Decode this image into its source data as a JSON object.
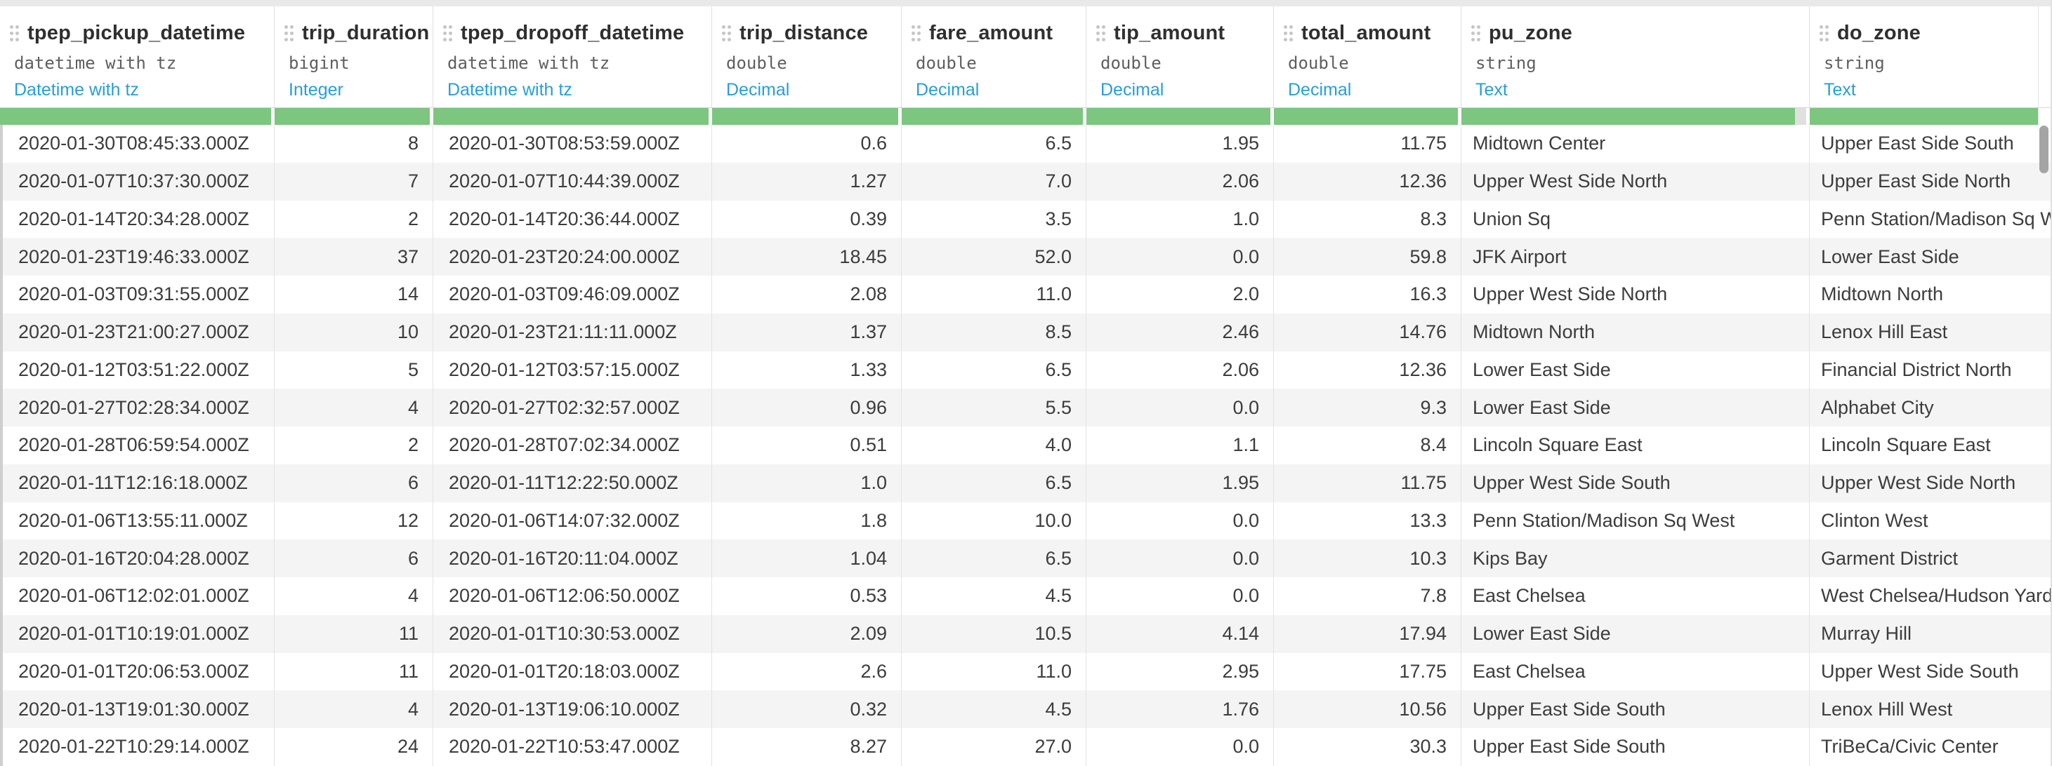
{
  "table": {
    "columns": [
      {
        "name": "tpep_pickup_datetime",
        "type": "datetime with tz",
        "logical_type": "Datetime with tz"
      },
      {
        "name": "trip_duration",
        "type": "bigint",
        "logical_type": "Integer"
      },
      {
        "name": "tpep_dropoff_datetime",
        "type": "datetime with tz",
        "logical_type": "Datetime with tz"
      },
      {
        "name": "trip_distance",
        "type": "double",
        "logical_type": "Decimal"
      },
      {
        "name": "fare_amount",
        "type": "double",
        "logical_type": "Decimal"
      },
      {
        "name": "tip_amount",
        "type": "double",
        "logical_type": "Decimal"
      },
      {
        "name": "total_amount",
        "type": "double",
        "logical_type": "Decimal"
      },
      {
        "name": "pu_zone",
        "type": "string",
        "logical_type": "Text"
      },
      {
        "name": "do_zone",
        "type": "string",
        "logical_type": "Text"
      }
    ],
    "rows": [
      [
        "2020-01-30T08:45:33.000Z",
        "8",
        "2020-01-30T08:53:59.000Z",
        "0.6",
        "6.5",
        "1.95",
        "11.75",
        "Midtown Center",
        "Upper East Side South"
      ],
      [
        "2020-01-07T10:37:30.000Z",
        "7",
        "2020-01-07T10:44:39.000Z",
        "1.27",
        "7.0",
        "2.06",
        "12.36",
        "Upper West Side North",
        "Upper East Side North"
      ],
      [
        "2020-01-14T20:34:28.000Z",
        "2",
        "2020-01-14T20:36:44.000Z",
        "0.39",
        "3.5",
        "1.0",
        "8.3",
        "Union Sq",
        "Penn Station/Madison Sq West"
      ],
      [
        "2020-01-23T19:46:33.000Z",
        "37",
        "2020-01-23T20:24:00.000Z",
        "18.45",
        "52.0",
        "0.0",
        "59.8",
        "JFK Airport",
        "Lower East Side"
      ],
      [
        "2020-01-03T09:31:55.000Z",
        "14",
        "2020-01-03T09:46:09.000Z",
        "2.08",
        "11.0",
        "2.0",
        "16.3",
        "Upper West Side North",
        "Midtown North"
      ],
      [
        "2020-01-23T21:00:27.000Z",
        "10",
        "2020-01-23T21:11:11.000Z",
        "1.37",
        "8.5",
        "2.46",
        "14.76",
        "Midtown North",
        "Lenox Hill East"
      ],
      [
        "2020-01-12T03:51:22.000Z",
        "5",
        "2020-01-12T03:57:15.000Z",
        "1.33",
        "6.5",
        "2.06",
        "12.36",
        "Lower East Side",
        "Financial District North"
      ],
      [
        "2020-01-27T02:28:34.000Z",
        "4",
        "2020-01-27T02:32:57.000Z",
        "0.96",
        "5.5",
        "0.0",
        "9.3",
        "Lower East Side",
        "Alphabet City"
      ],
      [
        "2020-01-28T06:59:54.000Z",
        "2",
        "2020-01-28T07:02:34.000Z",
        "0.51",
        "4.0",
        "1.1",
        "8.4",
        "Lincoln Square East",
        "Lincoln Square East"
      ],
      [
        "2020-01-11T12:16:18.000Z",
        "6",
        "2020-01-11T12:22:50.000Z",
        "1.0",
        "6.5",
        "1.95",
        "11.75",
        "Upper West Side South",
        "Upper West Side North"
      ],
      [
        "2020-01-06T13:55:11.000Z",
        "12",
        "2020-01-06T14:07:32.000Z",
        "1.8",
        "10.0",
        "0.0",
        "13.3",
        "Penn Station/Madison Sq West",
        "Clinton West"
      ],
      [
        "2020-01-16T20:04:28.000Z",
        "6",
        "2020-01-16T20:11:04.000Z",
        "1.04",
        "6.5",
        "0.0",
        "10.3",
        "Kips Bay",
        "Garment District"
      ],
      [
        "2020-01-06T12:02:01.000Z",
        "4",
        "2020-01-06T12:06:50.000Z",
        "0.53",
        "4.5",
        "0.0",
        "7.8",
        "East Chelsea",
        "West Chelsea/Hudson Yards"
      ],
      [
        "2020-01-01T10:19:01.000Z",
        "11",
        "2020-01-01T10:30:53.000Z",
        "2.09",
        "10.5",
        "4.14",
        "17.94",
        "Lower East Side",
        "Murray Hill"
      ],
      [
        "2020-01-01T20:06:53.000Z",
        "11",
        "2020-01-01T20:18:03.000Z",
        "2.6",
        "11.0",
        "2.95",
        "17.75",
        "East Chelsea",
        "Upper West Side South"
      ],
      [
        "2020-01-13T19:01:30.000Z",
        "4",
        "2020-01-13T19:06:10.000Z",
        "0.32",
        "4.5",
        "1.76",
        "10.56",
        "Upper East Side South",
        "Lenox Hill West"
      ],
      [
        "2020-01-22T10:29:14.000Z",
        "24",
        "2020-01-22T10:53:47.000Z",
        "8.27",
        "27.0",
        "0.0",
        "30.3",
        "Upper East Side South",
        "TriBeCa/Civic Center"
      ]
    ]
  },
  "icons": {
    "drag_handle": "six-dot-grid"
  },
  "colors": {
    "accent_green": "#7cc67f",
    "type_link_blue": "#289ed9"
  }
}
